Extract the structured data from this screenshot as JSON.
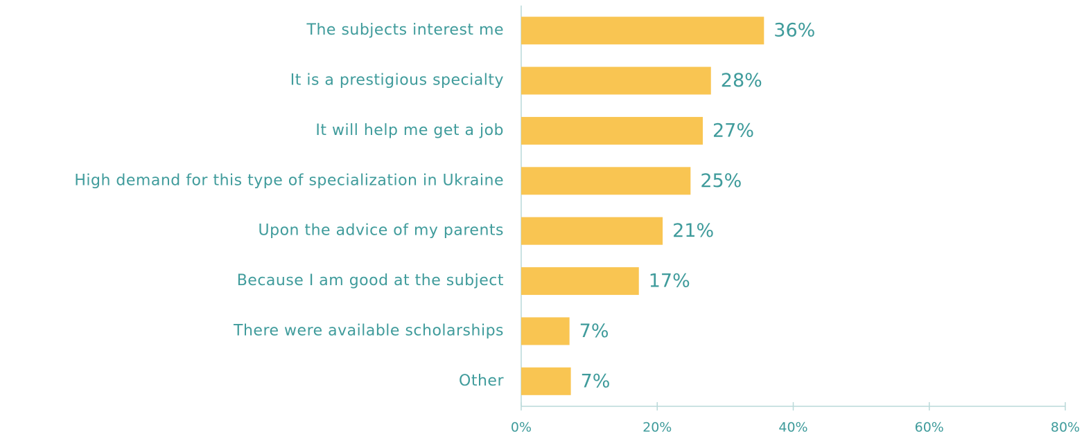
{
  "chart_data": {
    "type": "barh",
    "categories": [
      "The subjects interest me",
      "It is a prestigious specialty",
      "It will help me get a job",
      "High demand for this type of specialization in Ukraine",
      "Upon the advice of my parents",
      "Because I am good at the subject",
      "There were available scholarships",
      "Other"
    ],
    "values": [
      35.7,
      27.9,
      26.7,
      24.9,
      20.8,
      17.3,
      7.1,
      7.3
    ],
    "value_labels": [
      "36%",
      "28%",
      "27%",
      "25%",
      "21%",
      "17%",
      "7%",
      "7%"
    ],
    "color": "#f9c552",
    "xlim": [
      0,
      80
    ],
    "xticks": [
      {
        "value": 0,
        "label": "0%"
      },
      {
        "value": 20,
        "label": "20%"
      },
      {
        "value": 40,
        "label": "40%"
      },
      {
        "value": 60,
        "label": "60%"
      },
      {
        "value": 80,
        "label": "80%"
      }
    ],
    "grid": false
  }
}
